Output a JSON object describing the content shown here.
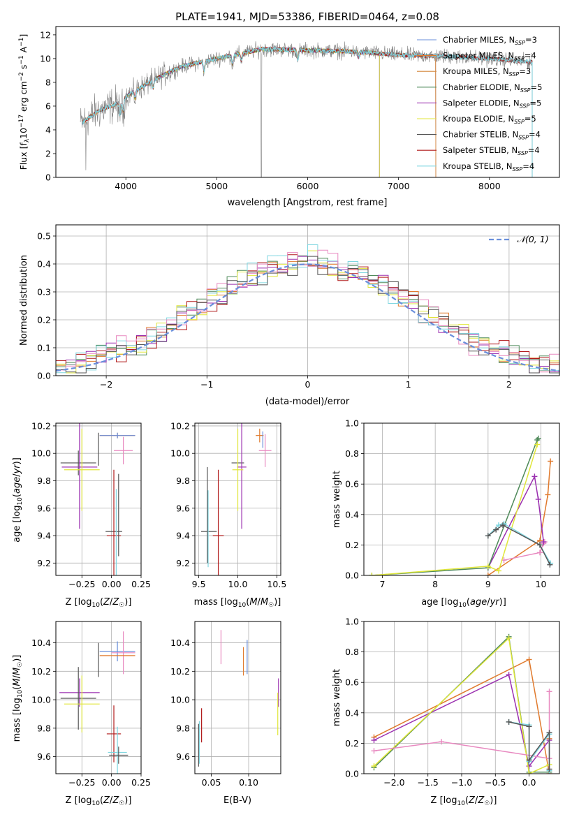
{
  "chart_data": [
    {
      "id": "spectrum",
      "type": "line",
      "title": "PLATE=1941, MJD=53386, FIBERID=0464, z=0.08",
      "xlabel": "wavelength [Angstrom, rest frame]",
      "ylabel": "Flux [f_λ 10^-17 erg cm^-2 s^-1 A^-1]",
      "xlim": [
        3230,
        8770
      ],
      "ylim": [
        0,
        12.7
      ],
      "xticks": [
        4000,
        5000,
        6000,
        7000,
        8000
      ],
      "yticks": [
        0,
        2,
        4,
        6,
        8,
        10,
        12
      ],
      "grid": false,
      "legend": "right",
      "data_series": {
        "name": "",
        "x_range": [
          3500,
          8470
        ],
        "continuum_anchors": [
          [
            3500,
            4.5
          ],
          [
            3700,
            5.6
          ],
          [
            3900,
            6.2
          ],
          [
            4000,
            6.8
          ],
          [
            4300,
            8.2
          ],
          [
            4600,
            9.3
          ],
          [
            5000,
            10.0
          ],
          [
            5500,
            10.8
          ],
          [
            6000,
            10.7
          ],
          [
            6500,
            10.6
          ],
          [
            7000,
            10.3
          ],
          [
            7500,
            10.2
          ],
          [
            8000,
            10.0
          ],
          [
            8470,
            9.7
          ]
        ]
      },
      "series": [
        {
          "name": "Chabrier MILES, N_SSP=3",
          "color": "#6a8fdb",
          "x_range": [
            3520,
            7410
          ]
        },
        {
          "name": "Salpeter MILES, N_SSP=4",
          "color": "#e07a2d",
          "x_range": [
            3520,
            7410
          ]
        },
        {
          "name": "Kroupa MILES, N_SSP=3",
          "color": "#d4853a",
          "x_range": [
            3520,
            7410
          ]
        },
        {
          "name": "Chabrier ELODIE, N_SSP=5",
          "color": "#4f8a5a",
          "x_range": [
            4000,
            6790
          ]
        },
        {
          "name": "Salpeter ELODIE, N_SSP=5",
          "color": "#9b30b0",
          "x_range": [
            4000,
            6790
          ]
        },
        {
          "name": "Kroupa ELODIE, N_SSP=5",
          "color": "#e0e63a",
          "x_range": [
            4000,
            6790
          ]
        },
        {
          "name": "Chabrier STELIB, N_SSP=4",
          "color": "#555555",
          "x_range": [
            3520,
            8470
          ]
        },
        {
          "name": "Salpeter STELIB, N_SSP=4",
          "color": "#b01818",
          "x_range": [
            3520,
            8470
          ]
        },
        {
          "name": "Kroupa STELIB, N_SSP=4",
          "color": "#7fd6e0",
          "x_range": [
            3520,
            8470
          ]
        }
      ]
    },
    {
      "id": "residuals",
      "type": "line",
      "xlabel": "(data-model)/error",
      "ylabel": "Normed distribution",
      "xlim": [
        -2.5,
        2.5
      ],
      "ylim": [
        0,
        0.54
      ],
      "xticks": [
        -2,
        -1,
        0,
        1,
        2
      ],
      "yticks": [
        0.0,
        0.1,
        0.2,
        0.3,
        0.4,
        0.5
      ],
      "grid": true,
      "legend": "top-right",
      "legend_entries": [
        "𝒩(0, 1)"
      ],
      "reference_curve": {
        "name": "𝒩(0, 1)",
        "color": "#6a8fdb",
        "mean": 0,
        "sigma": 1
      },
      "bin_width": 0.1,
      "histogram_colors": [
        "#e07a2d",
        "#4f8a5a",
        "#9b30b0",
        "#e0e63a",
        "#b01818",
        "#7fd6e0",
        "#e889c0",
        "#555555"
      ]
    },
    {
      "id": "age_vs_Z",
      "type": "scatter",
      "xlabel": "Z [log10(Z/Z☉)]",
      "ylabel": "age  [log10(age/yr)]",
      "xlim": [
        -0.47,
        0.25
      ],
      "ylim": [
        9.11,
        10.22
      ],
      "xticks": [
        -0.25,
        0.0,
        0.25
      ],
      "xticklabels": [
        "−0.25",
        "0.00",
        "0.25"
      ],
      "yticks": [
        9.2,
        9.4,
        9.6,
        9.8,
        10.0,
        10.2
      ],
      "grid": true,
      "points": [
        {
          "color": "#e07a2d",
          "x": 0.05,
          "xerr": 0.15,
          "y": 10.13,
          "yerr": 0.02
        },
        {
          "color": "#6a8fdb",
          "x": 0.05,
          "xerr": 0.15,
          "y": 10.13,
          "yerr": 0.02
        },
        {
          "color": "#e889c0",
          "x": 0.1,
          "xerr": 0.08,
          "y": 10.02,
          "yerr": 0.1
        },
        {
          "color": "#555555",
          "x": -0.11,
          "xerr": 0.0,
          "y": 10.03,
          "yerr": 0.12
        },
        {
          "color": "#555555",
          "x": -0.28,
          "xerr": 0.15,
          "y": 9.93,
          "yerr": 0.09
        },
        {
          "color": "#9b30b0",
          "x": -0.27,
          "xerr": 0.15,
          "y": 9.9,
          "yerr": 0.45
        },
        {
          "color": "#e0e63a",
          "x": -0.25,
          "xerr": 0.15,
          "y": 9.88,
          "yerr": 0.3
        },
        {
          "color": "#555555",
          "x": 0.02,
          "xerr": 0.07,
          "y": 9.43,
          "yerr": 0.0
        },
        {
          "color": "#b01818",
          "x": 0.02,
          "xerr": 0.06,
          "y": 9.4,
          "yerr": 0.48
        },
        {
          "color": "#7fd6e0",
          "x": 0.04,
          "xerr": 0.0,
          "y": 9.42,
          "yerr": 0.32
        },
        {
          "color": "#555555",
          "x": 0.06,
          "xerr": 0.0,
          "y": 9.55,
          "yerr": 0.3
        }
      ]
    },
    {
      "id": "age_vs_mass",
      "type": "scatter",
      "xlabel": "mass [log10(M/M☉)]",
      "ylabel": "",
      "xlim": [
        9.45,
        10.55
      ],
      "ylim": [
        9.11,
        10.22
      ],
      "xticks": [
        9.5,
        10.0,
        10.5
      ],
      "xticklabels": [
        "9.5",
        "10.0",
        "10.5"
      ],
      "yticks": [
        9.2,
        9.4,
        9.6,
        9.8,
        10.0,
        10.2
      ],
      "grid": true,
      "points": [
        {
          "color": "#e07a2d",
          "x": 10.28,
          "xerr": 0.05,
          "y": 10.13,
          "yerr": 0.05
        },
        {
          "color": "#6a8fdb",
          "x": 10.32,
          "xerr": 0.0,
          "y": 10.1,
          "yerr": 0.06
        },
        {
          "color": "#e889c0",
          "x": 10.35,
          "xerr": 0.08,
          "y": 10.02,
          "yerr": 0.12
        },
        {
          "color": "#555555",
          "x": 10.0,
          "xerr": 0.08,
          "y": 9.93,
          "yerr": 0.0
        },
        {
          "color": "#9b30b0",
          "x": 10.05,
          "xerr": 0.06,
          "y": 9.9,
          "yerr": 0.45
        },
        {
          "color": "#e0e63a",
          "x": 10.0,
          "xerr": 0.07,
          "y": 9.88,
          "yerr": 0.3
        },
        {
          "color": "#555555",
          "x": 9.63,
          "xerr": 0.1,
          "y": 9.43,
          "yerr": 0.0
        },
        {
          "color": "#b01818",
          "x": 9.75,
          "xerr": 0.07,
          "y": 9.4,
          "yerr": 0.48
        },
        {
          "color": "#7fd6e0",
          "x": 9.62,
          "xerr": 0.0,
          "y": 9.45,
          "yerr": 0.28
        },
        {
          "color": "#555555",
          "x": 9.61,
          "xerr": 0.0,
          "y": 9.55,
          "yerr": 0.35
        }
      ]
    },
    {
      "id": "massweight_vs_age",
      "type": "line",
      "xlabel": "age  [log10(age/yr)]",
      "ylabel": "mass weight",
      "xlim": [
        6.65,
        10.35
      ],
      "ylim": [
        0,
        1.0
      ],
      "xticks": [
        7,
        8,
        9,
        10
      ],
      "yticks": [
        0.0,
        0.2,
        0.4,
        0.6,
        0.8,
        1.0
      ],
      "grid": true,
      "series": [
        {
          "color": "#e07a2d",
          "x": [
            9.0,
            9.98,
            10.13,
            10.18
          ],
          "y": [
            0.0,
            0.23,
            0.53,
            0.75
          ]
        },
        {
          "color": "#e889c0",
          "x": [
            9.3,
            9.98,
            10.05,
            10.07
          ],
          "y": [
            0.1,
            0.15,
            0.21,
            0.22
          ]
        },
        {
          "color": "#9b30b0",
          "x": [
            9.0,
            9.88,
            9.95,
            10.05
          ],
          "y": [
            0.05,
            0.65,
            0.5,
            0.22
          ]
        },
        {
          "color": "#4f8a5a",
          "x": [
            6.8,
            9.0,
            9.93,
            9.95
          ],
          "y": [
            0.0,
            0.05,
            0.89,
            0.9
          ]
        },
        {
          "color": "#e0e63a",
          "x": [
            6.8,
            9.0,
            9.2,
            9.93
          ],
          "y": [
            0.0,
            0.06,
            0.03,
            0.86
          ]
        },
        {
          "color": "#7fd6e0",
          "x": [
            9.0,
            9.2,
            9.3,
            9.98,
            10.18
          ],
          "y": [
            0.26,
            0.33,
            0.34,
            0.2,
            0.08
          ]
        },
        {
          "color": "#555555",
          "x": [
            9.0,
            9.15,
            9.28,
            9.98,
            10.17
          ],
          "y": [
            0.26,
            0.3,
            0.33,
            0.2,
            0.07
          ]
        }
      ]
    },
    {
      "id": "mass_vs_Z",
      "type": "scatter",
      "xlabel": "Z [log10(Z/Z☉)]",
      "ylabel": "mass [log10(M/M☉)]",
      "xlim": [
        -0.47,
        0.25
      ],
      "ylim": [
        9.48,
        10.55
      ],
      "xticks": [
        -0.25,
        0.0,
        0.25
      ],
      "xticklabels": [
        "−0.25",
        "0.00",
        "0.25"
      ],
      "yticks": [
        9.6,
        9.8,
        10.0,
        10.2,
        10.4
      ],
      "grid": true,
      "points": [
        {
          "color": "#6a8fdb",
          "x": 0.05,
          "xerr": 0.15,
          "y": 10.34,
          "yerr": 0.07
        },
        {
          "color": "#e889c0",
          "x": 0.1,
          "xerr": 0.1,
          "y": 10.33,
          "yerr": 0.15
        },
        {
          "color": "#e07a2d",
          "x": 0.05,
          "xerr": 0.15,
          "y": 10.31,
          "yerr": 0.0
        },
        {
          "color": "#555555",
          "x": -0.11,
          "xerr": 0.0,
          "y": 10.28,
          "yerr": 0.12
        },
        {
          "color": "#9b30b0",
          "x": -0.27,
          "xerr": 0.17,
          "y": 10.05,
          "yerr": 0.1
        },
        {
          "color": "#555555",
          "x": -0.28,
          "xerr": 0.15,
          "y": 10.01,
          "yerr": 0.22
        },
        {
          "color": "#e0e63a",
          "x": -0.25,
          "xerr": 0.15,
          "y": 9.97,
          "yerr": 0.2
        },
        {
          "color": "#b01818",
          "x": 0.02,
          "xerr": 0.06,
          "y": 9.76,
          "yerr": 0.2
        },
        {
          "color": "#7fd6e0",
          "x": 0.05,
          "xerr": 0.08,
          "y": 9.63,
          "yerr": 0.18
        },
        {
          "color": "#555555",
          "x": 0.06,
          "xerr": 0.08,
          "y": 9.61,
          "yerr": 0.06
        }
      ]
    },
    {
      "id": "mass_vs_EBV",
      "type": "scatter",
      "xlabel": "E(B-V)",
      "ylabel": "",
      "xlim": [
        0.028,
        0.143
      ],
      "ylim": [
        9.48,
        10.55
      ],
      "xticks": [
        0.05,
        0.1
      ],
      "xticklabels": [
        "0.05",
        "0.10"
      ],
      "yticks": [
        9.6,
        9.8,
        10.0,
        10.2,
        10.4
      ],
      "grid": true,
      "points": [
        {
          "color": "#e889c0",
          "x": 0.063,
          "xerr": 0.0,
          "y": 10.37,
          "yerr": 0.12
        },
        {
          "color": "#6a8fdb",
          "x": 0.098,
          "xerr": 0.0,
          "y": 10.3,
          "yerr": 0.12
        },
        {
          "color": "#e07a2d",
          "x": 0.093,
          "xerr": 0.0,
          "y": 10.27,
          "yerr": 0.1
        },
        {
          "color": "#9b30b0",
          "x": 0.14,
          "xerr": 0.0,
          "y": 10.05,
          "yerr": 0.1
        },
        {
          "color": "#e0e63a",
          "x": 0.139,
          "xerr": 0.0,
          "y": 9.9,
          "yerr": 0.15
        },
        {
          "color": "#b01818",
          "x": 0.037,
          "xerr": 0.0,
          "y": 9.82,
          "yerr": 0.12
        },
        {
          "color": "#7fd6e0",
          "x": 0.034,
          "xerr": 0.0,
          "y": 9.7,
          "yerr": 0.15
        },
        {
          "color": "#555555",
          "x": 0.033,
          "xerr": 0.0,
          "y": 9.68,
          "yerr": 0.15
        }
      ]
    },
    {
      "id": "massweight_vs_Z",
      "type": "line",
      "xlabel": "Z [log10(Z/Z☉)]",
      "ylabel": "mass weight",
      "xlim": [
        -2.45,
        0.45
      ],
      "ylim": [
        0,
        1.0
      ],
      "xticks": [
        -2.0,
        -1.5,
        -1.0,
        -0.5,
        0.0
      ],
      "xticklabels": [
        "−2.0",
        "−1.5",
        "−1.0",
        "−0.5",
        "0.0"
      ],
      "yticks": [
        0.0,
        0.2,
        0.4,
        0.6,
        0.8,
        1.0
      ],
      "grid": true,
      "series": [
        {
          "color": "#e07a2d",
          "x": [
            -2.3,
            0.0,
            0.3,
            0.3
          ],
          "y": [
            0.24,
            0.75,
            0.0,
            0.23
          ]
        },
        {
          "color": "#9b30b0",
          "x": [
            -2.3,
            -0.3,
            0.0,
            0.3
          ],
          "y": [
            0.22,
            0.65,
            0.05,
            0.22
          ]
        },
        {
          "color": "#4f8a5a",
          "x": [
            -2.3,
            -0.3,
            0.0,
            0.3
          ],
          "y": [
            0.04,
            0.9,
            0.01,
            0.01
          ]
        },
        {
          "color": "#e0e63a",
          "x": [
            -2.3,
            -0.3,
            0.0,
            0.3
          ],
          "y": [
            0.05,
            0.89,
            0.0,
            0.06
          ]
        },
        {
          "color": "#e889c0",
          "x": [
            -2.3,
            -1.3,
            0.3,
            0.3
          ],
          "y": [
            0.15,
            0.21,
            0.1,
            0.54
          ]
        },
        {
          "color": "#7fd6e0",
          "x": [
            -0.3,
            0.0,
            0.0,
            0.3,
            0.3
          ],
          "y": [
            0.34,
            0.32,
            0.08,
            0.26,
            0.02
          ]
        },
        {
          "color": "#555555",
          "x": [
            -0.3,
            0.0,
            0.0,
            0.3,
            0.3
          ],
          "y": [
            0.34,
            0.31,
            0.09,
            0.27,
            0.03
          ]
        }
      ]
    }
  ]
}
